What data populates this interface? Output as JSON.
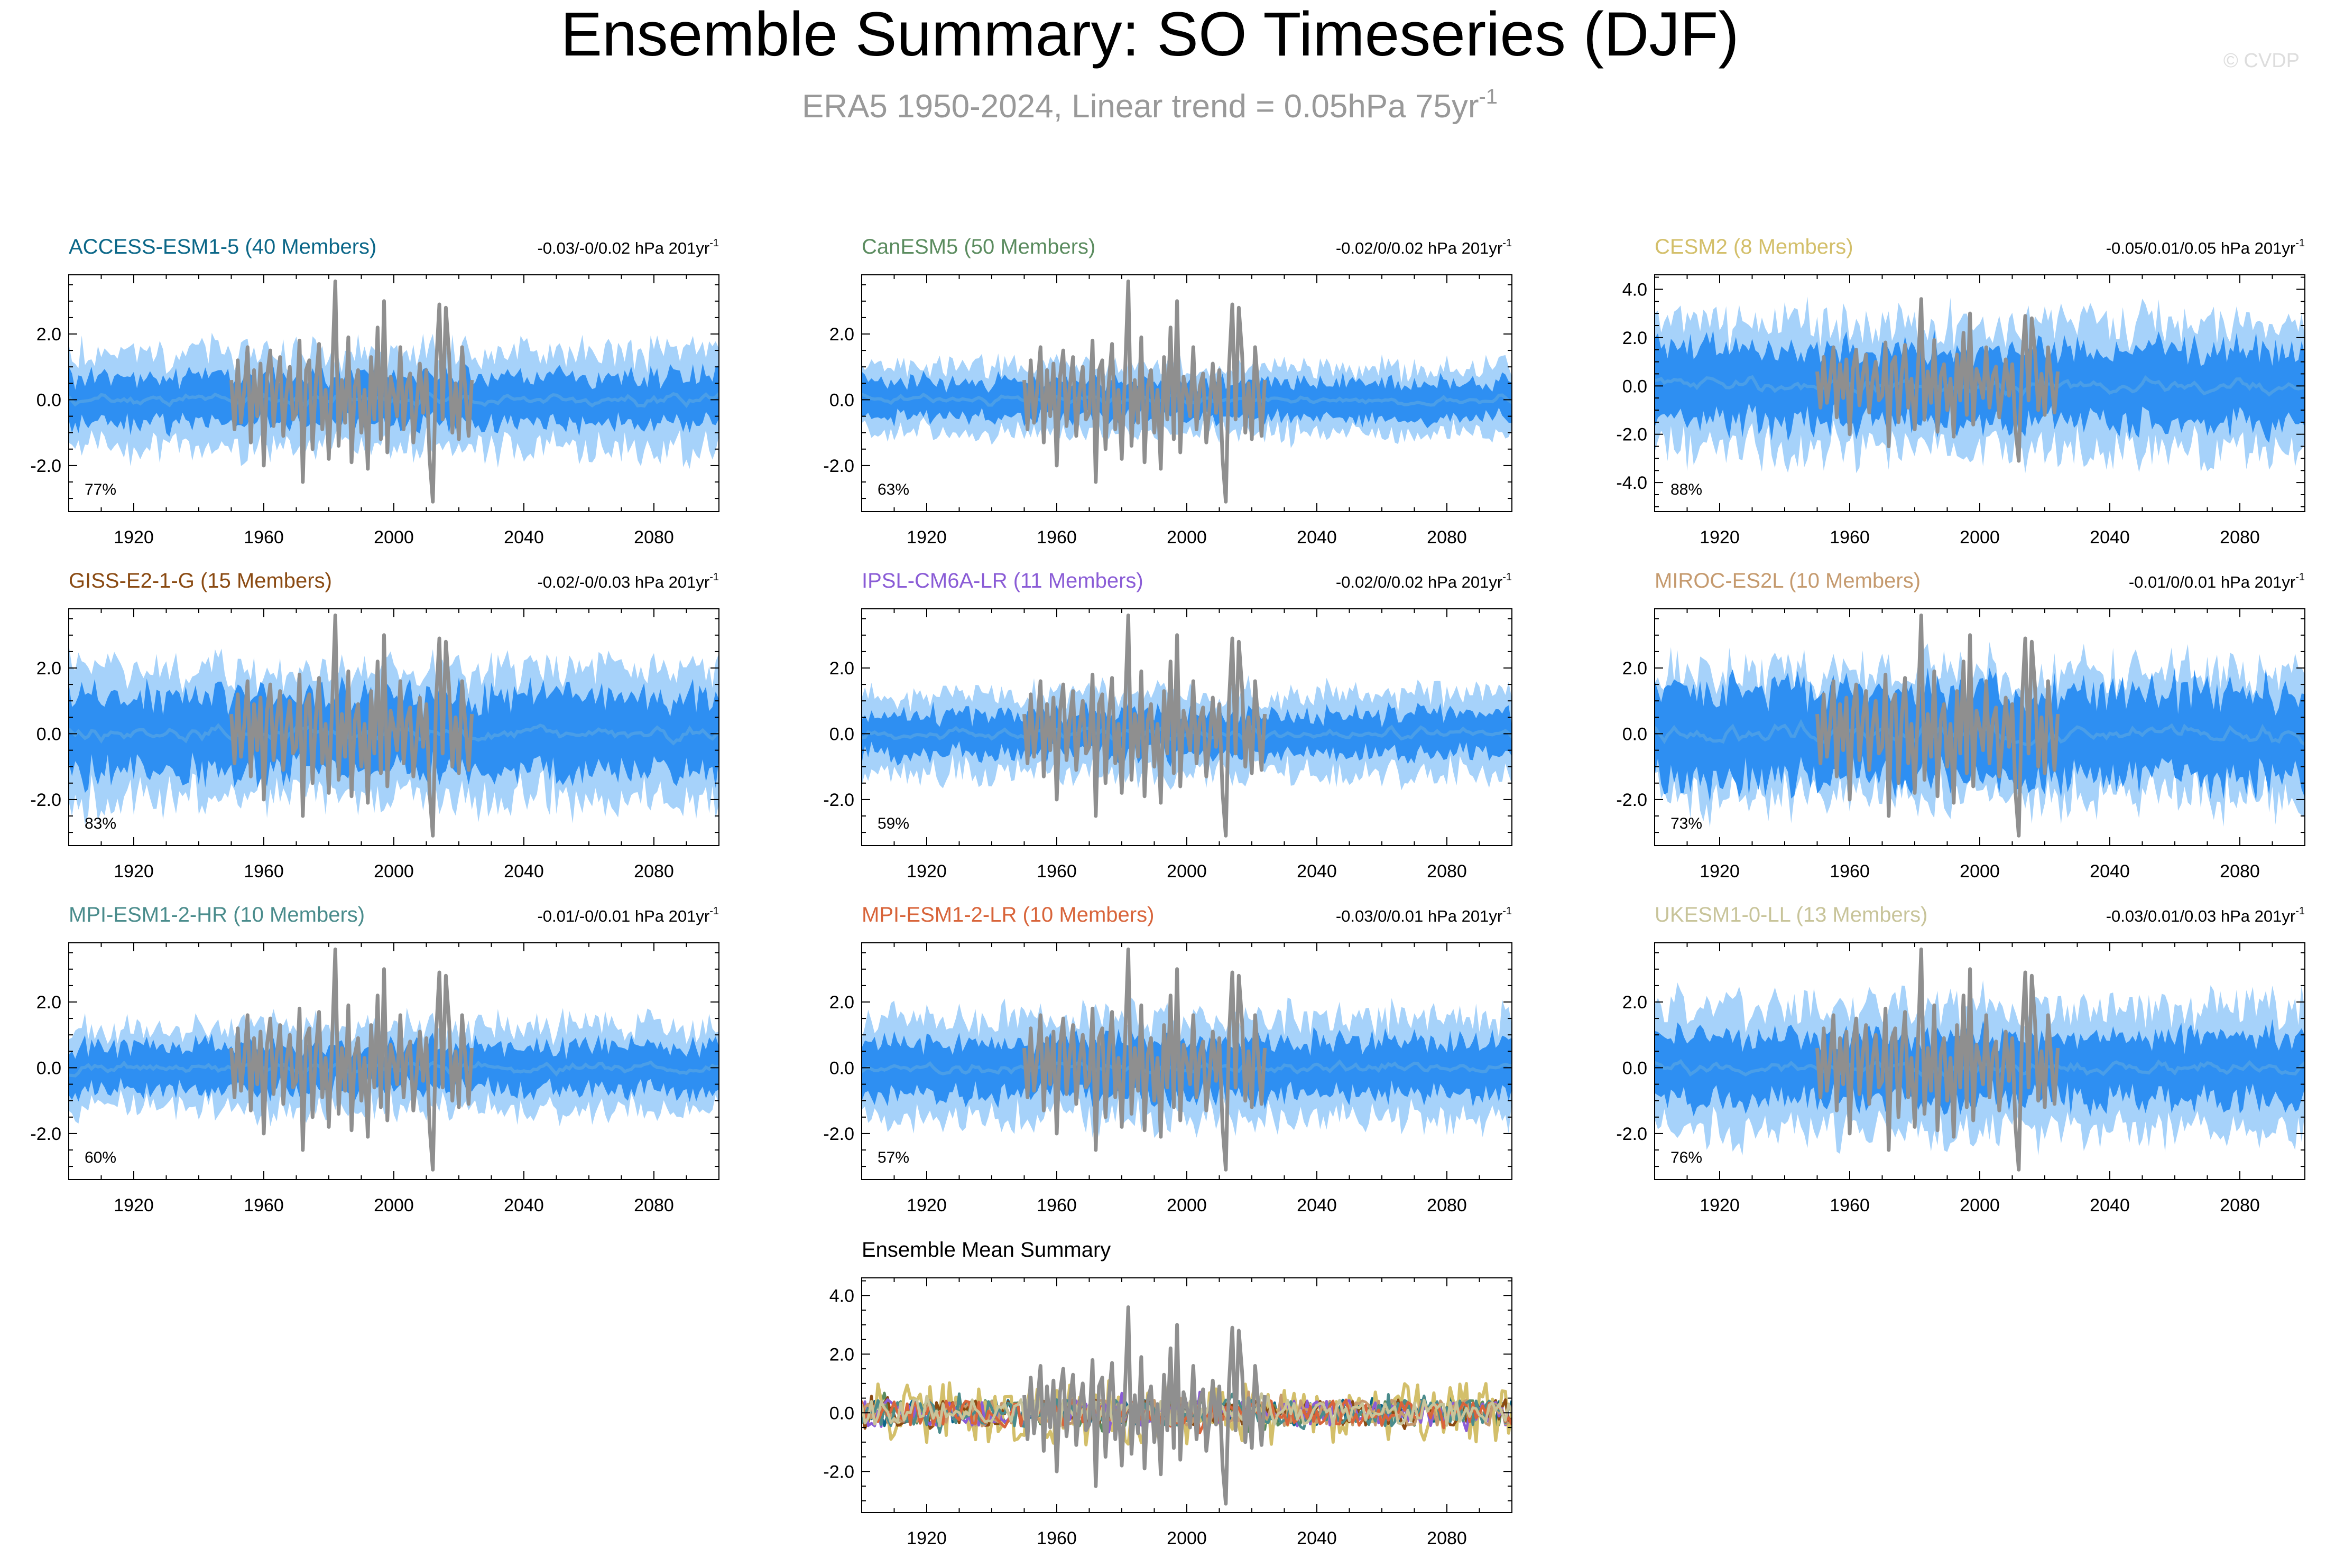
{
  "page": {
    "title": "Ensemble Summary: SO Timeseries (DJF)",
    "subtitle_text": "ERA5 1950-2024, Linear trend = 0.05hPa 75yr",
    "subtitle_sup": "-1",
    "watermark": "© CVDP"
  },
  "colors": {
    "outer_band": "#a6d2fa",
    "inner_band": "#2e8ff2",
    "ens_mean": "#4a9ee8",
    "obs": "#8f8f8f",
    "axis": "#000000"
  },
  "chart_data": [
    {
      "type": "area",
      "name": "ACCESS-ESM1-5",
      "title": "ACCESS-ESM1-5 (40 Members)",
      "title_color": "#0b6788",
      "trend_text": "-0.03/-0/0.02 hPa 201yr",
      "trend_sup": "-1",
      "pct": "77%",
      "outer": 1.45,
      "inner": 0.7,
      "mean_amp": 0.25,
      "seed": 11,
      "xlim": [
        1900,
        2100
      ],
      "ylim": [
        -3.4,
        3.8
      ],
      "x_ticks": [
        1920,
        1960,
        2000,
        2040,
        2080
      ],
      "x_tick_labels": [
        "1920",
        "1960",
        "2000",
        "2040",
        "2080"
      ],
      "y_ticks": [
        -2,
        0,
        2
      ],
      "y_tick_labels": [
        "-2.0",
        "0.0",
        "2.0"
      ]
    },
    {
      "type": "area",
      "name": "CanESM5",
      "title": "CanESM5 (50 Members)",
      "title_color": "#5b8c5f",
      "trend_text": "-0.02/0/0.02 hPa 201yr",
      "trend_sup": "-1",
      "pct": "63%",
      "outer": 1.0,
      "inner": 0.55,
      "mean_amp": 0.2,
      "seed": 23,
      "xlim": [
        1900,
        2100
      ],
      "ylim": [
        -3.4,
        3.8
      ],
      "x_ticks": [
        1920,
        1960,
        2000,
        2040,
        2080
      ],
      "x_tick_labels": [
        "1920",
        "1960",
        "2000",
        "2040",
        "2080"
      ],
      "y_ticks": [
        -2,
        0,
        2
      ],
      "y_tick_labels": [
        "-2.0",
        "0.0",
        "2.0"
      ]
    },
    {
      "type": "area",
      "name": "CESM2",
      "title": "CESM2 (8 Members)",
      "title_color": "#d3bf6a",
      "trend_text": "-0.05/0.01/0.05 hPa 201yr",
      "trend_sup": "-1",
      "pct": "88%",
      "outer": 2.6,
      "inner": 1.5,
      "mean_amp": 0.45,
      "seed": 37,
      "xlim": [
        1900,
        2100
      ],
      "ylim": [
        -5.2,
        4.6
      ],
      "x_ticks": [
        1920,
        1960,
        2000,
        2040,
        2080
      ],
      "x_tick_labels": [
        "1920",
        "1960",
        "2000",
        "2040",
        "2080"
      ],
      "y_ticks": [
        -4,
        -2,
        0,
        2,
        4
      ],
      "y_tick_labels": [
        "-4.0",
        "-2.0",
        "0.0",
        "2.0",
        "4.0"
      ]
    },
    {
      "type": "area",
      "name": "GISS-E2-1-G",
      "title": "GISS-E2-1-G (15 Members)",
      "title_color": "#8a4a12",
      "trend_text": "-0.02/-0/0.03 hPa 201yr",
      "trend_sup": "-1",
      "pct": "83%",
      "outer": 1.9,
      "inner": 1.15,
      "mean_amp": 0.35,
      "seed": 41,
      "xlim": [
        1900,
        2100
      ],
      "ylim": [
        -3.4,
        3.8
      ],
      "x_ticks": [
        1920,
        1960,
        2000,
        2040,
        2080
      ],
      "x_tick_labels": [
        "1920",
        "1960",
        "2000",
        "2040",
        "2080"
      ],
      "y_ticks": [
        -2,
        0,
        2
      ],
      "y_tick_labels": [
        "-2.0",
        "0.0",
        "2.0"
      ]
    },
    {
      "type": "area",
      "name": "IPSL-CM6A-LR",
      "title": "IPSL-CM6A-LR (11 Members)",
      "title_color": "#8a5cd6",
      "trend_text": "-0.02/0/0.02 hPa 201yr",
      "trend_sup": "-1",
      "pct": "59%",
      "outer": 1.2,
      "inner": 0.6,
      "mean_amp": 0.25,
      "seed": 53,
      "xlim": [
        1900,
        2100
      ],
      "ylim": [
        -3.4,
        3.8
      ],
      "x_ticks": [
        1920,
        1960,
        2000,
        2040,
        2080
      ],
      "x_tick_labels": [
        "1920",
        "1960",
        "2000",
        "2040",
        "2080"
      ],
      "y_ticks": [
        -2,
        0,
        2
      ],
      "y_tick_labels": [
        "-2.0",
        "0.0",
        "2.0"
      ]
    },
    {
      "type": "area",
      "name": "MIROC-ES2L",
      "title": "MIROC-ES2L (10 Members)",
      "title_color": "#c59a6e",
      "trend_text": "-0.01/0/0.01 hPa 201yr",
      "trend_sup": "-1",
      "pct": "73%",
      "outer": 1.9,
      "inner": 1.3,
      "mean_amp": 0.4,
      "seed": 67,
      "xlim": [
        1900,
        2100
      ],
      "ylim": [
        -3.4,
        3.8
      ],
      "x_ticks": [
        1920,
        1960,
        2000,
        2040,
        2080
      ],
      "x_tick_labels": [
        "1920",
        "1960",
        "2000",
        "2040",
        "2080"
      ],
      "y_ticks": [
        -2,
        0,
        2
      ],
      "y_tick_labels": [
        "-2.0",
        "0.0",
        "2.0"
      ]
    },
    {
      "type": "area",
      "name": "MPI-ESM1-2-HR",
      "title": "MPI-ESM1-2-HR (10 Members)",
      "title_color": "#4a8c8c",
      "trend_text": "-0.01/-0/0.01 hPa 201yr",
      "trend_sup": "-1",
      "pct": "60%",
      "outer": 1.25,
      "inner": 0.65,
      "mean_amp": 0.25,
      "seed": 71,
      "xlim": [
        1900,
        2100
      ],
      "ylim": [
        -3.4,
        3.8
      ],
      "x_ticks": [
        1920,
        1960,
        2000,
        2040,
        2080
      ],
      "x_tick_labels": [
        "1920",
        "1960",
        "2000",
        "2040",
        "2080"
      ],
      "y_ticks": [
        -2,
        0,
        2
      ],
      "y_tick_labels": [
        "-2.0",
        "0.0",
        "2.0"
      ]
    },
    {
      "type": "area",
      "name": "MPI-ESM1-2-LR",
      "title": "MPI-ESM1-2-LR (10 Members)",
      "title_color": "#d8643a",
      "trend_text": "-0.03/0/0.01 hPa 201yr",
      "trend_sup": "-1",
      "pct": "57%",
      "outer": 1.5,
      "inner": 0.8,
      "mean_amp": 0.25,
      "seed": 83,
      "xlim": [
        1900,
        2100
      ],
      "ylim": [
        -3.4,
        3.8
      ],
      "x_ticks": [
        1920,
        1960,
        2000,
        2040,
        2080
      ],
      "x_tick_labels": [
        "1920",
        "1960",
        "2000",
        "2040",
        "2080"
      ],
      "y_ticks": [
        -2,
        0,
        2
      ],
      "y_tick_labels": [
        "-2.0",
        "0.0",
        "2.0"
      ]
    },
    {
      "type": "area",
      "name": "UKESM1-0-LL",
      "title": "UKESM1-0-LL (13 Members)",
      "title_color": "#c8c49a",
      "trend_text": "-0.03/0.01/0.03 hPa 201yr",
      "trend_sup": "-1",
      "pct": "76%",
      "outer": 1.85,
      "inner": 0.95,
      "mean_amp": 0.3,
      "seed": 97,
      "xlim": [
        1900,
        2100
      ],
      "ylim": [
        -3.4,
        3.8
      ],
      "x_ticks": [
        1920,
        1960,
        2000,
        2040,
        2080
      ],
      "x_tick_labels": [
        "1920",
        "1960",
        "2000",
        "2040",
        "2080"
      ],
      "y_ticks": [
        -2,
        0,
        2
      ],
      "y_tick_labels": [
        "-2.0",
        "0.0",
        "2.0"
      ]
    },
    {
      "type": "line",
      "name": "Ensemble Mean Summary",
      "title": "Ensemble Mean Summary",
      "title_color": "#000000",
      "series_colors": [
        "#0b6788",
        "#5b8c5f",
        "#d3bf6a",
        "#8a4a12",
        "#8a5cd6",
        "#c59a6e",
        "#4a8c8c",
        "#d8643a",
        "#c8c49a"
      ],
      "xlim": [
        1900,
        2100
      ],
      "ylim": [
        -3.4,
        4.6
      ],
      "x_ticks": [
        1920,
        1960,
        2000,
        2040,
        2080
      ],
      "x_tick_labels": [
        "1920",
        "1960",
        "2000",
        "2040",
        "2080"
      ],
      "y_ticks": [
        -2,
        0,
        2,
        4
      ],
      "y_tick_labels": [
        "-2.0",
        "0.0",
        "2.0",
        "4.0"
      ]
    }
  ],
  "obs_series": {
    "name": "ERA5",
    "x_start": 1950,
    "values": [
      0.6,
      -0.9,
      1.2,
      -0.7,
      0.3,
      1.6,
      -1.3,
      0.9,
      -0.5,
      1.1,
      -2.0,
      0.7,
      1.5,
      -0.8,
      0.4,
      1.3,
      -1.1,
      0.2,
      1.0,
      -0.6,
      -0.4,
      1.8,
      -2.5,
      0.9,
      1.2,
      -1.5,
      0.5,
      1.7,
      -0.9,
      0.3,
      -1.8,
      0.8,
      3.6,
      -1.4,
      0.6,
      -0.7,
      1.9,
      -1.9,
      0.4,
      0.9,
      -1.0,
      0.3,
      -2.1,
      1.3,
      -0.6,
      2.2,
      -1.2,
      3.0,
      -1.6,
      0.7,
      0.2,
      -0.5,
      1.6,
      -0.9,
      0.4,
      0.8,
      -1.3,
      -0.2,
      1.1,
      -0.4,
      0.9,
      -1.8,
      -3.1,
      1.0,
      2.9,
      -0.6,
      2.8,
      1.4,
      -1.0,
      0.5,
      -1.2,
      1.6,
      0.3,
      -1.1,
      0.6
    ]
  }
}
